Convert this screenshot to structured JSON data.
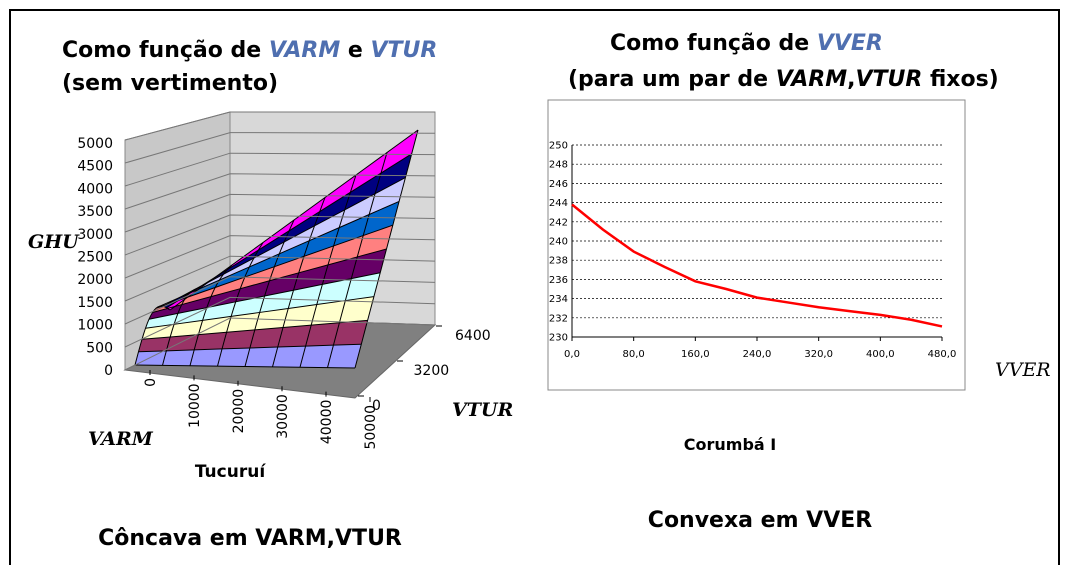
{
  "slide": {
    "left_heading": [
      "Como função de ",
      "VARM",
      " e ",
      "VTUR"
    ],
    "left_subheading": "(sem vertimento)",
    "right_heading": [
      "Como função de ",
      "VVER"
    ],
    "right_subheading": [
      "(para um par de ",
      "VARM",
      ",",
      "VTUR",
      " fixos)"
    ],
    "left_caption": "Côncava em VARM,VTUR",
    "right_caption": "Convexa em VVER"
  },
  "chart_data": [
    {
      "type": "surface",
      "title": "Tucuruí",
      "z_axis_label": "GHU",
      "x_axis_label": "VARM",
      "y_axis_label": "VTUR",
      "zlim": [
        0,
        5000
      ],
      "zticks": [
        0,
        500,
        1000,
        1500,
        2000,
        2500,
        3000,
        3500,
        4000,
        4500,
        5000
      ],
      "xlim": [
        0,
        50000
      ],
      "xticks": [
        0,
        10000,
        20000,
        30000,
        40000,
        50000
      ],
      "ylim": [
        0,
        6400
      ],
      "yticks": [
        0,
        3200,
        6400
      ],
      "colors": [
        "#9999ff",
        "#993366",
        "#ffffcc",
        "#ccffff",
        "#660066",
        "#ff8080",
        "#0066cc",
        "#ccccff",
        "#000080",
        "#ff00ff"
      ]
    },
    {
      "type": "line",
      "title": "Corumbá I",
      "x_axis_label": "VVER",
      "x": [
        0,
        40,
        80,
        120,
        160,
        200,
        240,
        280,
        320,
        360,
        400,
        440,
        480
      ],
      "series": [
        {
          "color": "#ff0000",
          "values": [
            243.8,
            241.2,
            238.9,
            237.3,
            235.8,
            235.0,
            234.1,
            233.6,
            233.1,
            232.7,
            232.3,
            231.8,
            231.1
          ]
        }
      ],
      "xlim": [
        0,
        480
      ],
      "xticks": [
        {
          "value": 0,
          "label": "0,0"
        },
        {
          "value": 80,
          "label": "80,0"
        },
        {
          "value": 160,
          "label": "160,0"
        },
        {
          "value": 240,
          "label": "240,0"
        },
        {
          "value": 320,
          "label": "320,0"
        },
        {
          "value": 400,
          "label": "400,0"
        },
        {
          "value": 480,
          "label": "480,0"
        }
      ],
      "ylim": [
        230,
        250
      ],
      "yticks": [
        230,
        232,
        234,
        236,
        238,
        240,
        242,
        244,
        246,
        248,
        250
      ],
      "grid": true
    }
  ]
}
